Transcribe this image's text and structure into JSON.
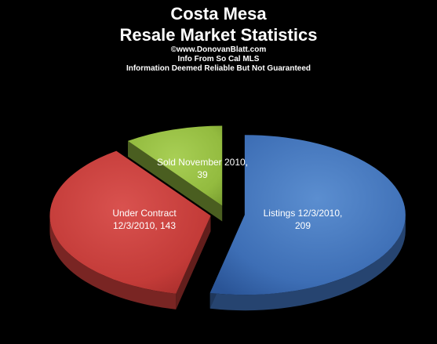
{
  "header": {
    "title_line1": "Costa Mesa",
    "title_line2": "Resale Market Statistics",
    "credit": "©www.DonovanBlatt.com",
    "source": "Info  From So Cal MLS",
    "disclaimer": "Information Deemed Reliable But Not Guaranteed"
  },
  "chart_data": {
    "type": "pie",
    "title": "Costa Mesa Resale Market Statistics",
    "style": "3d-exploded",
    "background": "#000000",
    "slices": [
      {
        "label_lines": [
          "Listings 12/3/2010,",
          "209"
        ],
        "value": 209,
        "color": "#3d6eb5"
      },
      {
        "label_lines": [
          "Under Contract",
          "12/3/2010, 143"
        ],
        "value": 143,
        "color": "#c33b38"
      },
      {
        "label_lines": [
          "Sold November  2010,",
          "39"
        ],
        "value": 39,
        "color": "#93bb3f"
      }
    ]
  }
}
